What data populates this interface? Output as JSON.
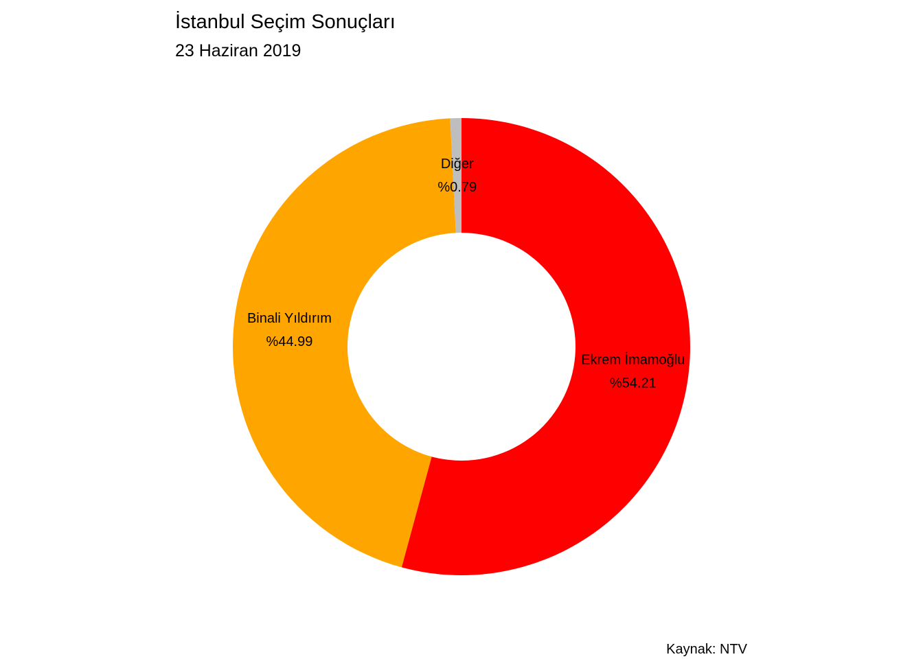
{
  "chart_data": {
    "type": "pie",
    "title": "İstanbul Seçim Sonuçları",
    "subtitle": "23 Haziran 2019",
    "caption": "Kaynak: NTV",
    "donut": true,
    "legend": "none",
    "grid": false,
    "slices": [
      {
        "name": "Ekrem İmamoğlu",
        "label": "%54.21",
        "value": 54.21,
        "color": "#FF0000"
      },
      {
        "name": "Binali Yıldırım",
        "label": "%44.99",
        "value": 44.99,
        "color": "#FFA500"
      },
      {
        "name": "Diğer",
        "label": "%0.79",
        "value": 0.79,
        "color": "#BEBEBE"
      }
    ]
  }
}
